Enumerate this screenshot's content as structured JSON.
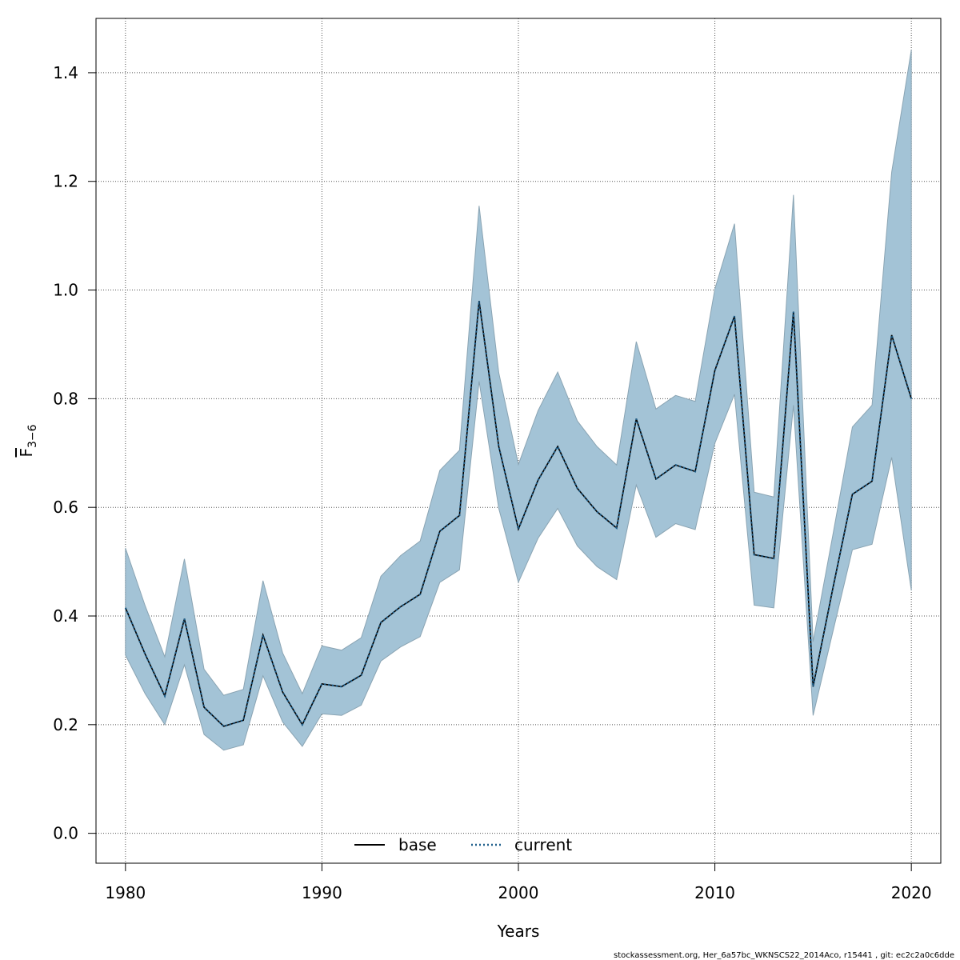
{
  "chart_data": {
    "type": "line",
    "xlabel": "Years",
    "ylabel_main": "F",
    "ylabel_sub": "3−6",
    "xlim": [
      1978.5,
      2021.5
    ],
    "ylim": [
      -0.055,
      1.5
    ],
    "x_ticks": [
      1980,
      1990,
      2000,
      2010,
      2020
    ],
    "y_ticks": [
      0.0,
      0.2,
      0.4,
      0.6,
      0.8,
      1.0,
      1.2,
      1.4
    ],
    "x_tick_labels": [
      "1980",
      "1990",
      "2000",
      "2010",
      "2020"
    ],
    "y_tick_labels": [
      "0.0",
      "0.2",
      "0.4",
      "0.6",
      "0.8",
      "1.0",
      "1.2",
      "1.4"
    ],
    "grid": true,
    "legend_position": "bottom-center",
    "x": [
      1980,
      1981,
      1982,
      1983,
      1984,
      1985,
      1986,
      1987,
      1988,
      1989,
      1990,
      1991,
      1992,
      1993,
      1994,
      1995,
      1996,
      1997,
      1998,
      1999,
      2000,
      2001,
      2002,
      2003,
      2004,
      2005,
      2006,
      2007,
      2008,
      2009,
      2010,
      2011,
      2012,
      2013,
      2014,
      2015,
      2016,
      2017,
      2018,
      2019,
      2020
    ],
    "series": [
      {
        "name": "base",
        "line_style": "solid",
        "color": "#000000",
        "values": [
          0.415,
          0.33,
          0.253,
          0.395,
          0.232,
          0.197,
          0.208,
          0.365,
          0.26,
          0.2,
          0.275,
          0.27,
          0.291,
          0.388,
          0.417,
          0.44,
          0.556,
          0.585,
          0.98,
          0.712,
          0.56,
          0.65,
          0.712,
          0.635,
          0.592,
          0.562,
          0.763,
          0.652,
          0.678,
          0.666,
          0.852,
          0.952,
          0.513,
          0.506,
          0.96,
          0.27,
          0.45,
          0.624,
          0.648,
          0.917,
          0.8
        ]
      },
      {
        "name": "current",
        "line_style": "dotted",
        "color": "#1f5f8b",
        "values": [
          0.415,
          0.33,
          0.253,
          0.395,
          0.232,
          0.197,
          0.208,
          0.365,
          0.26,
          0.2,
          0.275,
          0.27,
          0.291,
          0.388,
          0.417,
          0.44,
          0.556,
          0.585,
          0.98,
          0.712,
          0.56,
          0.65,
          0.712,
          0.635,
          0.592,
          0.562,
          0.763,
          0.652,
          0.678,
          0.666,
          0.852,
          0.952,
          0.513,
          0.506,
          0.96,
          0.27,
          0.45,
          0.624,
          0.648,
          0.917,
          0.8
        ]
      }
    ],
    "band": {
      "color": "#a3c3d6",
      "lower": [
        0.328,
        0.257,
        0.2,
        0.31,
        0.182,
        0.153,
        0.163,
        0.29,
        0.205,
        0.16,
        0.22,
        0.217,
        0.236,
        0.317,
        0.343,
        0.362,
        0.462,
        0.485,
        0.832,
        0.598,
        0.462,
        0.543,
        0.598,
        0.529,
        0.491,
        0.467,
        0.641,
        0.545,
        0.57,
        0.559,
        0.718,
        0.808,
        0.42,
        0.415,
        0.788,
        0.217,
        0.37,
        0.522,
        0.532,
        0.692,
        0.447
      ],
      "upper": [
        0.525,
        0.419,
        0.325,
        0.505,
        0.302,
        0.254,
        0.265,
        0.465,
        0.332,
        0.257,
        0.345,
        0.337,
        0.36,
        0.473,
        0.511,
        0.538,
        0.668,
        0.705,
        1.155,
        0.848,
        0.679,
        0.778,
        0.849,
        0.759,
        0.712,
        0.678,
        0.905,
        0.781,
        0.806,
        0.795,
        1.002,
        1.122,
        0.628,
        0.619,
        1.175,
        0.353,
        0.548,
        0.748,
        0.788,
        1.217,
        1.442
      ]
    }
  },
  "legend": {
    "items": [
      {
        "label": "base"
      },
      {
        "label": "current"
      }
    ]
  },
  "footer": {
    "text": "stockassessment.org, Her_6a57bc_WKNSCS22_2014Aco, r15441 , git: ec2c2a0c6dde"
  }
}
